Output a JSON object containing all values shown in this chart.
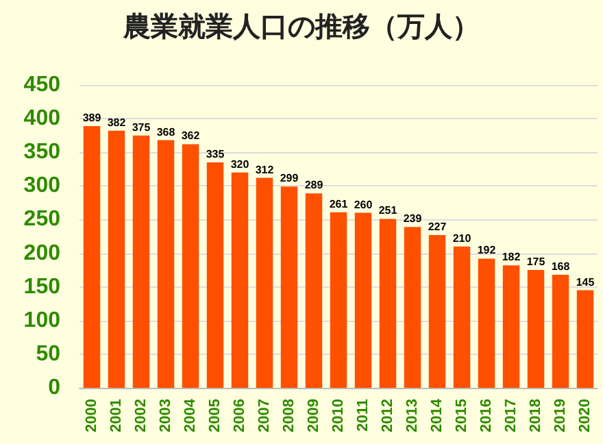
{
  "chart_data": {
    "type": "bar",
    "title": "農業就業人口の推移（万人）",
    "categories": [
      "2000",
      "2001",
      "2002",
      "2003",
      "2004",
      "2005",
      "2006",
      "2007",
      "2008",
      "2009",
      "2010",
      "2011",
      "2012",
      "2013",
      "2014",
      "2015",
      "2016",
      "2017",
      "2018",
      "2019",
      "2020"
    ],
    "values": [
      389,
      382,
      375,
      368,
      362,
      335,
      320,
      312,
      299,
      289,
      261,
      260,
      251,
      239,
      227,
      210,
      192,
      182,
      175,
      168,
      145
    ],
    "color": "#ff5000",
    "ylim": [
      0,
      450
    ],
    "yticks": [
      0,
      50,
      100,
      150,
      200,
      250,
      300,
      350,
      400,
      450
    ],
    "grid": "y",
    "data_labels": true
  }
}
